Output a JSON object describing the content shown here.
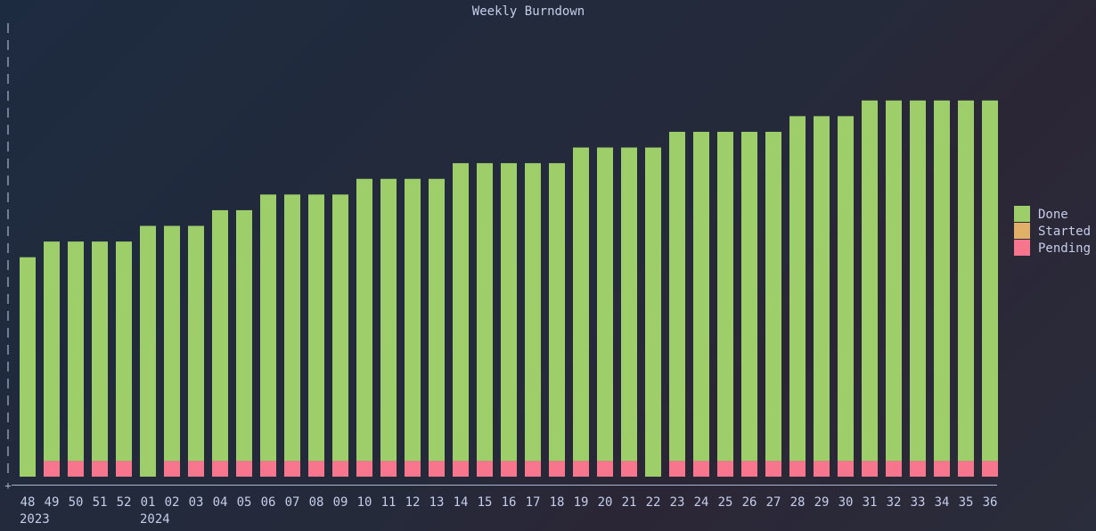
{
  "chart_data": {
    "type": "bar",
    "stacked": true,
    "title": "Weekly Burndown",
    "categories": [
      "48",
      "49",
      "50",
      "51",
      "52",
      "01",
      "02",
      "03",
      "04",
      "05",
      "06",
      "07",
      "08",
      "09",
      "10",
      "11",
      "12",
      "13",
      "14",
      "15",
      "16",
      "17",
      "18",
      "19",
      "20",
      "21",
      "22",
      "23",
      "24",
      "25",
      "26",
      "27",
      "28",
      "29",
      "30",
      "31",
      "32",
      "33",
      "34",
      "35",
      "36"
    ],
    "year_labels": [
      {
        "index": 0,
        "label": "2023"
      },
      {
        "index": 5,
        "label": "2024"
      }
    ],
    "series": [
      {
        "name": "Pending",
        "color": "#f7768e",
        "values": [
          0,
          1,
          1,
          1,
          1,
          0,
          1,
          1,
          1,
          1,
          1,
          1,
          1,
          1,
          1,
          1,
          1,
          1,
          1,
          1,
          1,
          1,
          1,
          1,
          1,
          1,
          0,
          1,
          1,
          1,
          1,
          1,
          1,
          1,
          1,
          1,
          1,
          1,
          1,
          1,
          1
        ]
      },
      {
        "name": "Started",
        "color": "#e0af68",
        "values": [
          0,
          0,
          0,
          0,
          0,
          0,
          0,
          0,
          0,
          0,
          0,
          0,
          0,
          0,
          0,
          0,
          0,
          0,
          0,
          0,
          0,
          0,
          0,
          0,
          0,
          0,
          0,
          0,
          0,
          0,
          0,
          0,
          0,
          0,
          0,
          0,
          0,
          0,
          0,
          0,
          0
        ]
      },
      {
        "name": "Done",
        "color": "#9ece6a",
        "values": [
          14,
          14,
          14,
          14,
          14,
          16,
          15,
          15,
          16,
          16,
          17,
          17,
          17,
          17,
          18,
          18,
          18,
          18,
          19,
          19,
          19,
          19,
          19,
          20,
          20,
          20,
          21,
          21,
          21,
          21,
          21,
          21,
          22,
          22,
          22,
          23,
          23,
          23,
          23,
          23,
          23
        ]
      }
    ],
    "legend": [
      "Done",
      "Started",
      "Pending"
    ],
    "legend_position": "right",
    "ylim": [
      0,
      27
    ],
    "grid": false
  }
}
